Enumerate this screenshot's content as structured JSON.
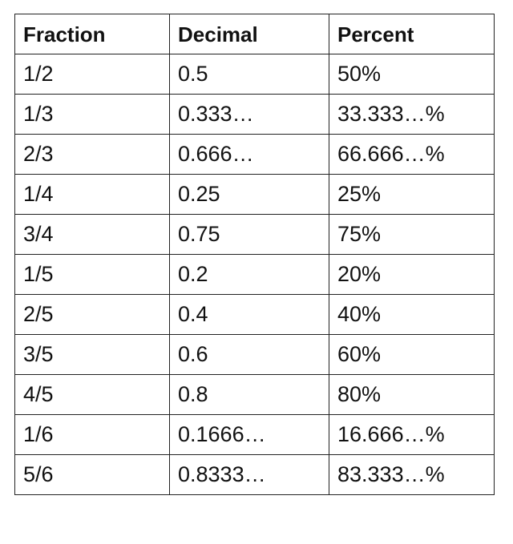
{
  "table": {
    "headers": [
      "Fraction",
      "Decimal",
      "Percent"
    ],
    "rows": [
      [
        "1/2",
        "0.5",
        "50%"
      ],
      [
        "1/3",
        "0.333…",
        "33.333…%"
      ],
      [
        "2/3",
        "0.666…",
        "66.666…%"
      ],
      [
        "1/4",
        "0.25",
        "25%"
      ],
      [
        "3/4",
        "0.75",
        "75%"
      ],
      [
        "1/5",
        "0.2",
        "20%"
      ],
      [
        "2/5",
        "0.4",
        "40%"
      ],
      [
        "3/5",
        "0.6",
        "60%"
      ],
      [
        "4/5",
        "0.8",
        "80%"
      ],
      [
        "1/6",
        "0.1666…",
        "16.666…%"
      ],
      [
        "5/6",
        "0.8333…",
        "83.333…%"
      ]
    ]
  }
}
